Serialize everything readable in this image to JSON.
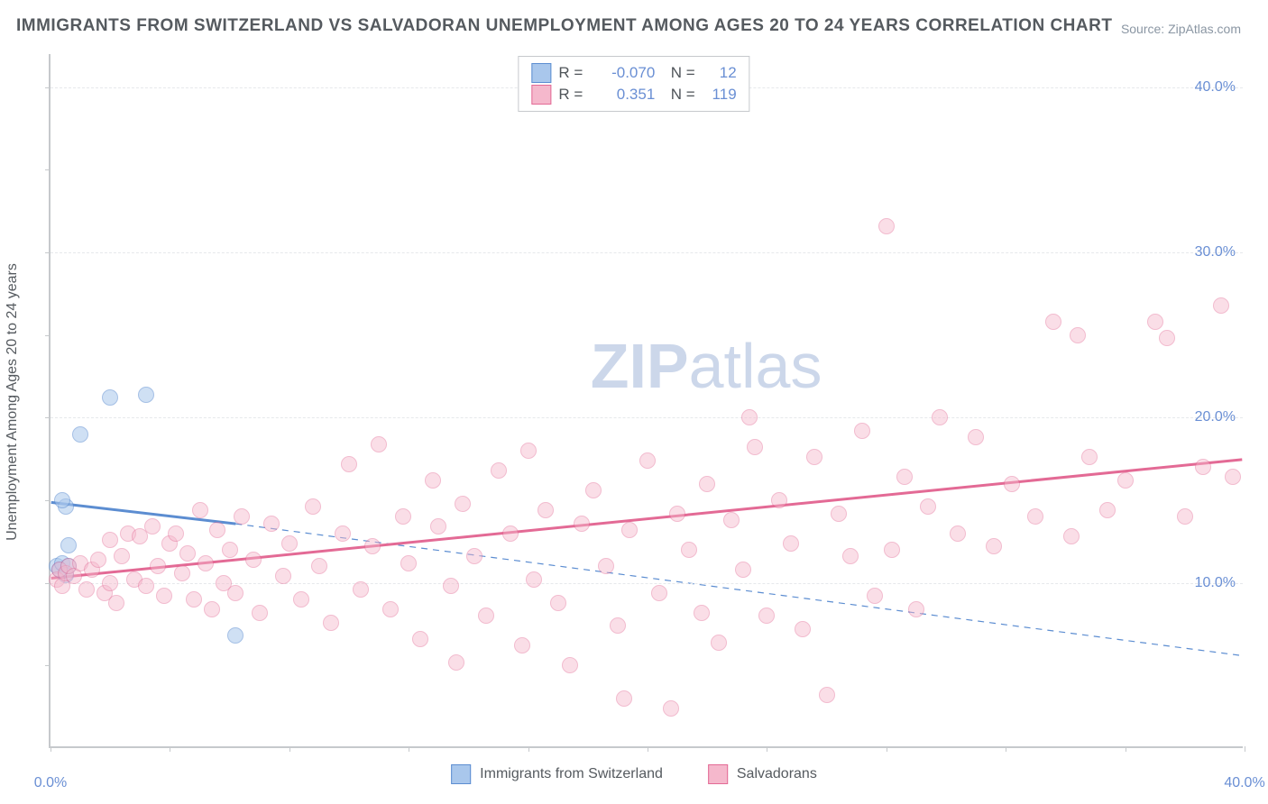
{
  "title": "IMMIGRANTS FROM SWITZERLAND VS SALVADORAN UNEMPLOYMENT AMONG AGES 20 TO 24 YEARS CORRELATION CHART",
  "source": "Source: ZipAtlas.com",
  "watermark_bold": "ZIP",
  "watermark_rest": "atlas",
  "ylabel": "Unemployment Among Ages 20 to 24 years",
  "chart": {
    "type": "scatter",
    "xlim": [
      0,
      40
    ],
    "ylim": [
      0,
      42
    ],
    "xtick_labels": [
      {
        "v": 0,
        "label": "0.0%"
      },
      {
        "v": 40,
        "label": "40.0%"
      }
    ],
    "xtick_marks": [
      0,
      4,
      8,
      12,
      16,
      20,
      24,
      28,
      32,
      36,
      40
    ],
    "ytick_labels": [
      {
        "v": 10,
        "label": "10.0%"
      },
      {
        "v": 20,
        "label": "20.0%"
      },
      {
        "v": 30,
        "label": "30.0%"
      },
      {
        "v": 40,
        "label": "40.0%"
      }
    ],
    "ytick_marks": [
      5,
      10,
      15,
      20,
      25,
      30,
      35,
      40
    ],
    "background_color": "#ffffff",
    "grid_color": "#e6e8eb",
    "axis_color": "#c6c9cc",
    "marker_radius": 9,
    "series": [
      {
        "name": "Immigrants from Switzerland",
        "fill": "#a9c7ec",
        "stroke": "#5c8dd1",
        "fill_opacity": 0.55,
        "R": "-0.070",
        "N": "12",
        "points": [
          [
            0.2,
            11.0
          ],
          [
            0.3,
            10.8
          ],
          [
            0.4,
            11.2
          ],
          [
            0.5,
            10.5
          ],
          [
            0.6,
            12.3
          ],
          [
            0.5,
            14.6
          ],
          [
            0.4,
            15.0
          ],
          [
            1.0,
            19.0
          ],
          [
            2.0,
            21.2
          ],
          [
            3.2,
            21.4
          ],
          [
            0.6,
            11.0
          ],
          [
            6.2,
            6.8
          ]
        ],
        "trend_solid": {
          "x1": 0,
          "y1": 14.8,
          "x2": 6.2,
          "y2": 13.5,
          "width": 3
        },
        "trend_dashed": {
          "x1": 6.2,
          "y1": 13.5,
          "x2": 40,
          "y2": 5.5,
          "width": 1.2,
          "dash": "7,6"
        }
      },
      {
        "name": "Salvadorans",
        "fill": "#f5b8cc",
        "stroke": "#e36a95",
        "fill_opacity": 0.45,
        "R": "0.351",
        "N": "119",
        "points": [
          [
            0.2,
            10.2
          ],
          [
            0.3,
            10.8
          ],
          [
            0.4,
            9.8
          ],
          [
            0.5,
            10.6
          ],
          [
            0.6,
            11.0
          ],
          [
            0.8,
            10.4
          ],
          [
            1.0,
            11.2
          ],
          [
            1.2,
            9.6
          ],
          [
            1.4,
            10.8
          ],
          [
            1.6,
            11.4
          ],
          [
            1.8,
            9.4
          ],
          [
            2.0,
            10.0
          ],
          [
            2.0,
            12.6
          ],
          [
            2.2,
            8.8
          ],
          [
            2.4,
            11.6
          ],
          [
            2.6,
            13.0
          ],
          [
            2.8,
            10.2
          ],
          [
            3.0,
            12.8
          ],
          [
            3.2,
            9.8
          ],
          [
            3.4,
            13.4
          ],
          [
            3.6,
            11.0
          ],
          [
            3.8,
            9.2
          ],
          [
            4.0,
            12.4
          ],
          [
            4.2,
            13.0
          ],
          [
            4.4,
            10.6
          ],
          [
            4.6,
            11.8
          ],
          [
            4.8,
            9.0
          ],
          [
            5.0,
            14.4
          ],
          [
            5.2,
            11.2
          ],
          [
            5.4,
            8.4
          ],
          [
            5.6,
            13.2
          ],
          [
            5.8,
            10.0
          ],
          [
            6.0,
            12.0
          ],
          [
            6.2,
            9.4
          ],
          [
            6.4,
            14.0
          ],
          [
            6.8,
            11.4
          ],
          [
            7.0,
            8.2
          ],
          [
            7.4,
            13.6
          ],
          [
            7.8,
            10.4
          ],
          [
            8.0,
            12.4
          ],
          [
            8.4,
            9.0
          ],
          [
            8.8,
            14.6
          ],
          [
            9.0,
            11.0
          ],
          [
            9.4,
            7.6
          ],
          [
            9.8,
            13.0
          ],
          [
            10.0,
            17.2
          ],
          [
            10.4,
            9.6
          ],
          [
            10.8,
            12.2
          ],
          [
            11.0,
            18.4
          ],
          [
            11.4,
            8.4
          ],
          [
            11.8,
            14.0
          ],
          [
            12.0,
            11.2
          ],
          [
            12.4,
            6.6
          ],
          [
            12.8,
            16.2
          ],
          [
            13.0,
            13.4
          ],
          [
            13.4,
            9.8
          ],
          [
            13.6,
            5.2
          ],
          [
            13.8,
            14.8
          ],
          [
            14.2,
            11.6
          ],
          [
            14.6,
            8.0
          ],
          [
            15.0,
            16.8
          ],
          [
            15.4,
            13.0
          ],
          [
            15.8,
            6.2
          ],
          [
            16.0,
            18.0
          ],
          [
            16.2,
            10.2
          ],
          [
            16.6,
            14.4
          ],
          [
            17.0,
            8.8
          ],
          [
            17.4,
            5.0
          ],
          [
            17.8,
            13.6
          ],
          [
            18.2,
            15.6
          ],
          [
            18.6,
            11.0
          ],
          [
            19.0,
            7.4
          ],
          [
            19.2,
            3.0
          ],
          [
            19.4,
            13.2
          ],
          [
            20.0,
            17.4
          ],
          [
            20.4,
            9.4
          ],
          [
            20.8,
            2.4
          ],
          [
            21.0,
            14.2
          ],
          [
            21.4,
            12.0
          ],
          [
            21.8,
            8.2
          ],
          [
            22.0,
            16.0
          ],
          [
            22.4,
            6.4
          ],
          [
            22.8,
            13.8
          ],
          [
            23.2,
            10.8
          ],
          [
            23.4,
            20.0
          ],
          [
            23.6,
            18.2
          ],
          [
            24.0,
            8.0
          ],
          [
            24.4,
            15.0
          ],
          [
            24.8,
            12.4
          ],
          [
            25.2,
            7.2
          ],
          [
            25.6,
            17.6
          ],
          [
            26.0,
            3.2
          ],
          [
            26.4,
            14.2
          ],
          [
            26.8,
            11.6
          ],
          [
            27.2,
            19.2
          ],
          [
            27.6,
            9.2
          ],
          [
            28.0,
            31.6
          ],
          [
            28.2,
            12.0
          ],
          [
            28.6,
            16.4
          ],
          [
            29.0,
            8.4
          ],
          [
            29.4,
            14.6
          ],
          [
            29.8,
            20.0
          ],
          [
            30.4,
            13.0
          ],
          [
            31.0,
            18.8
          ],
          [
            31.6,
            12.2
          ],
          [
            32.2,
            16.0
          ],
          [
            33.0,
            14.0
          ],
          [
            33.6,
            25.8
          ],
          [
            34.2,
            12.8
          ],
          [
            34.4,
            25.0
          ],
          [
            34.8,
            17.6
          ],
          [
            35.4,
            14.4
          ],
          [
            36.0,
            16.2
          ],
          [
            37.0,
            25.8
          ],
          [
            37.4,
            24.8
          ],
          [
            38.0,
            14.0
          ],
          [
            38.6,
            17.0
          ],
          [
            39.2,
            26.8
          ],
          [
            39.6,
            16.4
          ]
        ],
        "trend_solid": {
          "x1": 0,
          "y1": 10.2,
          "x2": 40,
          "y2": 17.4,
          "width": 3
        }
      }
    ]
  },
  "legend_bottom": [
    {
      "label": "Immigrants from Switzerland",
      "fill": "#a9c7ec",
      "stroke": "#5c8dd1"
    },
    {
      "label": "Salvadorans",
      "fill": "#f5b8cc",
      "stroke": "#e36a95"
    }
  ]
}
